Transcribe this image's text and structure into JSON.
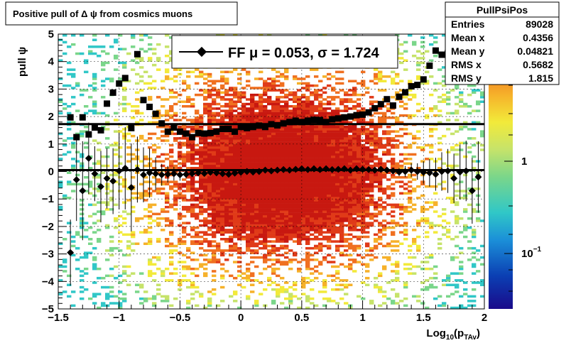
{
  "title": "Positive pull of Δ ψ from cosmics muons",
  "stats_box": {
    "name": "PullPsiPos",
    "rows": [
      {
        "label": "Entries",
        "value": "89028"
      },
      {
        "label": "Mean x",
        "value": "0.4356"
      },
      {
        "label": "Mean y",
        "value": "0.04821"
      },
      {
        "label": "RMS x",
        "value": "0.5682"
      },
      {
        "label": "RMS y",
        "value": "1.815"
      }
    ]
  },
  "legend": {
    "label": "FF μ =  0.053, σ =   1.724"
  },
  "colors": {
    "mean_marker": "#000000",
    "sigma_marker": "#000000",
    "palette": [
      "#1a0a8a",
      "#0b3fb3",
      "#1b8fd8",
      "#30c7c7",
      "#7ad68a",
      "#c6e36a",
      "#f2ea3a",
      "#f6b12a",
      "#f07020",
      "#e03a18",
      "#c81810"
    ]
  },
  "chart_data": {
    "type": "scatter",
    "subtype": "2d-histogram-with-profile",
    "xlabel": "Log10(pTAv)",
    "ylabel": "pull ψ",
    "xlim": [
      -1.5,
      2
    ],
    "ylim": [
      -5,
      5
    ],
    "xticks": [
      "−1.5",
      "−1",
      "−0.5",
      "0",
      "0.5",
      "1",
      "1.5",
      "2"
    ],
    "yticks": [
      "5",
      "4",
      "3",
      "2",
      "1",
      "0",
      "−1",
      "−2",
      "−3",
      "−4",
      "−5"
    ],
    "zscale": "log",
    "zticks": [
      {
        "label": "1",
        "exp": ""
      },
      {
        "label": "10",
        "exp": "−1"
      }
    ],
    "grid": true,
    "series": [
      {
        "marker": "circle-diamond",
        "x": [
          -1.4,
          -1.35,
          -1.3,
          -1.25,
          -1.2,
          -1.15,
          -1.1,
          -1.05,
          -1.0,
          -0.95,
          -0.9,
          -0.85,
          -0.8,
          -0.75,
          -0.7,
          -0.65,
          -0.6,
          -0.55,
          -0.5,
          -0.45,
          -0.4,
          -0.35,
          -0.3,
          -0.25,
          -0.2,
          -0.15,
          -0.1,
          -0.05,
          0.0,
          0.05,
          0.1,
          0.15,
          0.2,
          0.25,
          0.3,
          0.35,
          0.4,
          0.45,
          0.5,
          0.55,
          0.6,
          0.65,
          0.7,
          0.75,
          0.8,
          0.85,
          0.9,
          0.95,
          1.0,
          1.05,
          1.1,
          1.15,
          1.2,
          1.25,
          1.3,
          1.35,
          1.4,
          1.45,
          1.5,
          1.55,
          1.6,
          1.65,
          1.7,
          1.75,
          1.8,
          1.85,
          1.9,
          1.95
        ],
        "y": [
          -2.95,
          -0.3,
          -0.7,
          0.48,
          -0.08,
          -0.55,
          -0.25,
          -0.35,
          0.02,
          0.12,
          -0.58,
          0.07,
          -0.12,
          -0.05,
          -0.08,
          -0.12,
          -0.1,
          -0.08,
          -0.12,
          -0.1,
          -0.08,
          -0.05,
          -0.07,
          -0.03,
          -0.05,
          -0.08,
          -0.1,
          -0.06,
          -0.03,
          0.0,
          -0.02,
          0.0,
          0.05,
          0.02,
          0.05,
          0.07,
          0.05,
          0.08,
          0.1,
          0.07,
          0.1,
          0.07,
          0.1,
          0.07,
          0.08,
          0.1,
          0.05,
          0.1,
          0.08,
          0.07,
          0.05,
          0.08,
          0.05,
          0.02,
          -0.02,
          0.0,
          0.05,
          0.0,
          -0.03,
          -0.05,
          -0.1,
          0.0,
          0.02,
          -0.25,
          -0.02,
          0.02,
          -0.7,
          -0.2
        ],
        "err": [
          1.2,
          1.5,
          1.8,
          1.3,
          1.0,
          1.3,
          1.1,
          1.2,
          1.4,
          1.5,
          1.6,
          1.2,
          1.0,
          0.9,
          0.6,
          0.4,
          0.3,
          0.25,
          0.2,
          0.15,
          0.12,
          0.1,
          0.1,
          0.08,
          0.08,
          0.06,
          0.06,
          0.05,
          0.05,
          0.05,
          0.05,
          0.05,
          0.05,
          0.05,
          0.05,
          0.05,
          0.05,
          0.05,
          0.05,
          0.05,
          0.05,
          0.05,
          0.05,
          0.05,
          0.05,
          0.05,
          0.05,
          0.05,
          0.06,
          0.06,
          0.07,
          0.08,
          0.1,
          0.12,
          0.15,
          0.2,
          0.25,
          0.3,
          0.4,
          0.5,
          0.6,
          0.7,
          0.8,
          0.9,
          1.0,
          1.1,
          1.2,
          1.3
        ]
      },
      {
        "marker": "square",
        "x": [
          -1.4,
          -1.35,
          -1.3,
          -1.25,
          -1.2,
          -1.15,
          -1.1,
          -1.05,
          -1.0,
          -0.95,
          -0.9,
          -0.85,
          -0.8,
          -0.75,
          -0.7,
          -0.65,
          -0.6,
          -0.55,
          -0.5,
          -0.45,
          -0.4,
          -0.35,
          -0.3,
          -0.25,
          -0.2,
          -0.15,
          -0.1,
          -0.05,
          0.0,
          0.05,
          0.1,
          0.15,
          0.2,
          0.25,
          0.3,
          0.35,
          0.4,
          0.45,
          0.5,
          0.55,
          0.6,
          0.65,
          0.7,
          0.75,
          0.8,
          0.85,
          0.9,
          0.95,
          1.0,
          1.05,
          1.1,
          1.15,
          1.2,
          1.25,
          1.3,
          1.35,
          1.4,
          1.45,
          1.5,
          1.55,
          1.6,
          1.65,
          1.7
        ],
        "y": [
          1.97,
          1.25,
          1.97,
          1.35,
          1.6,
          1.5,
          2.47,
          2.87,
          3.2,
          3.4,
          1.58,
          4.27,
          2.6,
          2.35,
          2.1,
          1.75,
          1.45,
          1.6,
          1.45,
          1.38,
          1.25,
          1.4,
          1.38,
          1.4,
          1.45,
          1.55,
          1.55,
          1.45,
          1.62,
          1.58,
          1.62,
          1.67,
          1.62,
          1.72,
          1.68,
          1.75,
          1.8,
          1.85,
          1.8,
          1.85,
          1.88,
          1.87,
          1.8,
          1.9,
          1.93,
          1.97,
          2.0,
          2.05,
          2.07,
          2.15,
          2.3,
          2.45,
          2.63,
          2.4,
          2.72,
          2.88,
          3.1,
          3.15,
          3.35,
          3.85,
          4.4,
          4.25,
          4.3
        ]
      }
    ],
    "fit_lines": [
      {
        "name": "mean",
        "y": 0.053
      },
      {
        "name": "sigma",
        "y": 1.724
      }
    ]
  }
}
